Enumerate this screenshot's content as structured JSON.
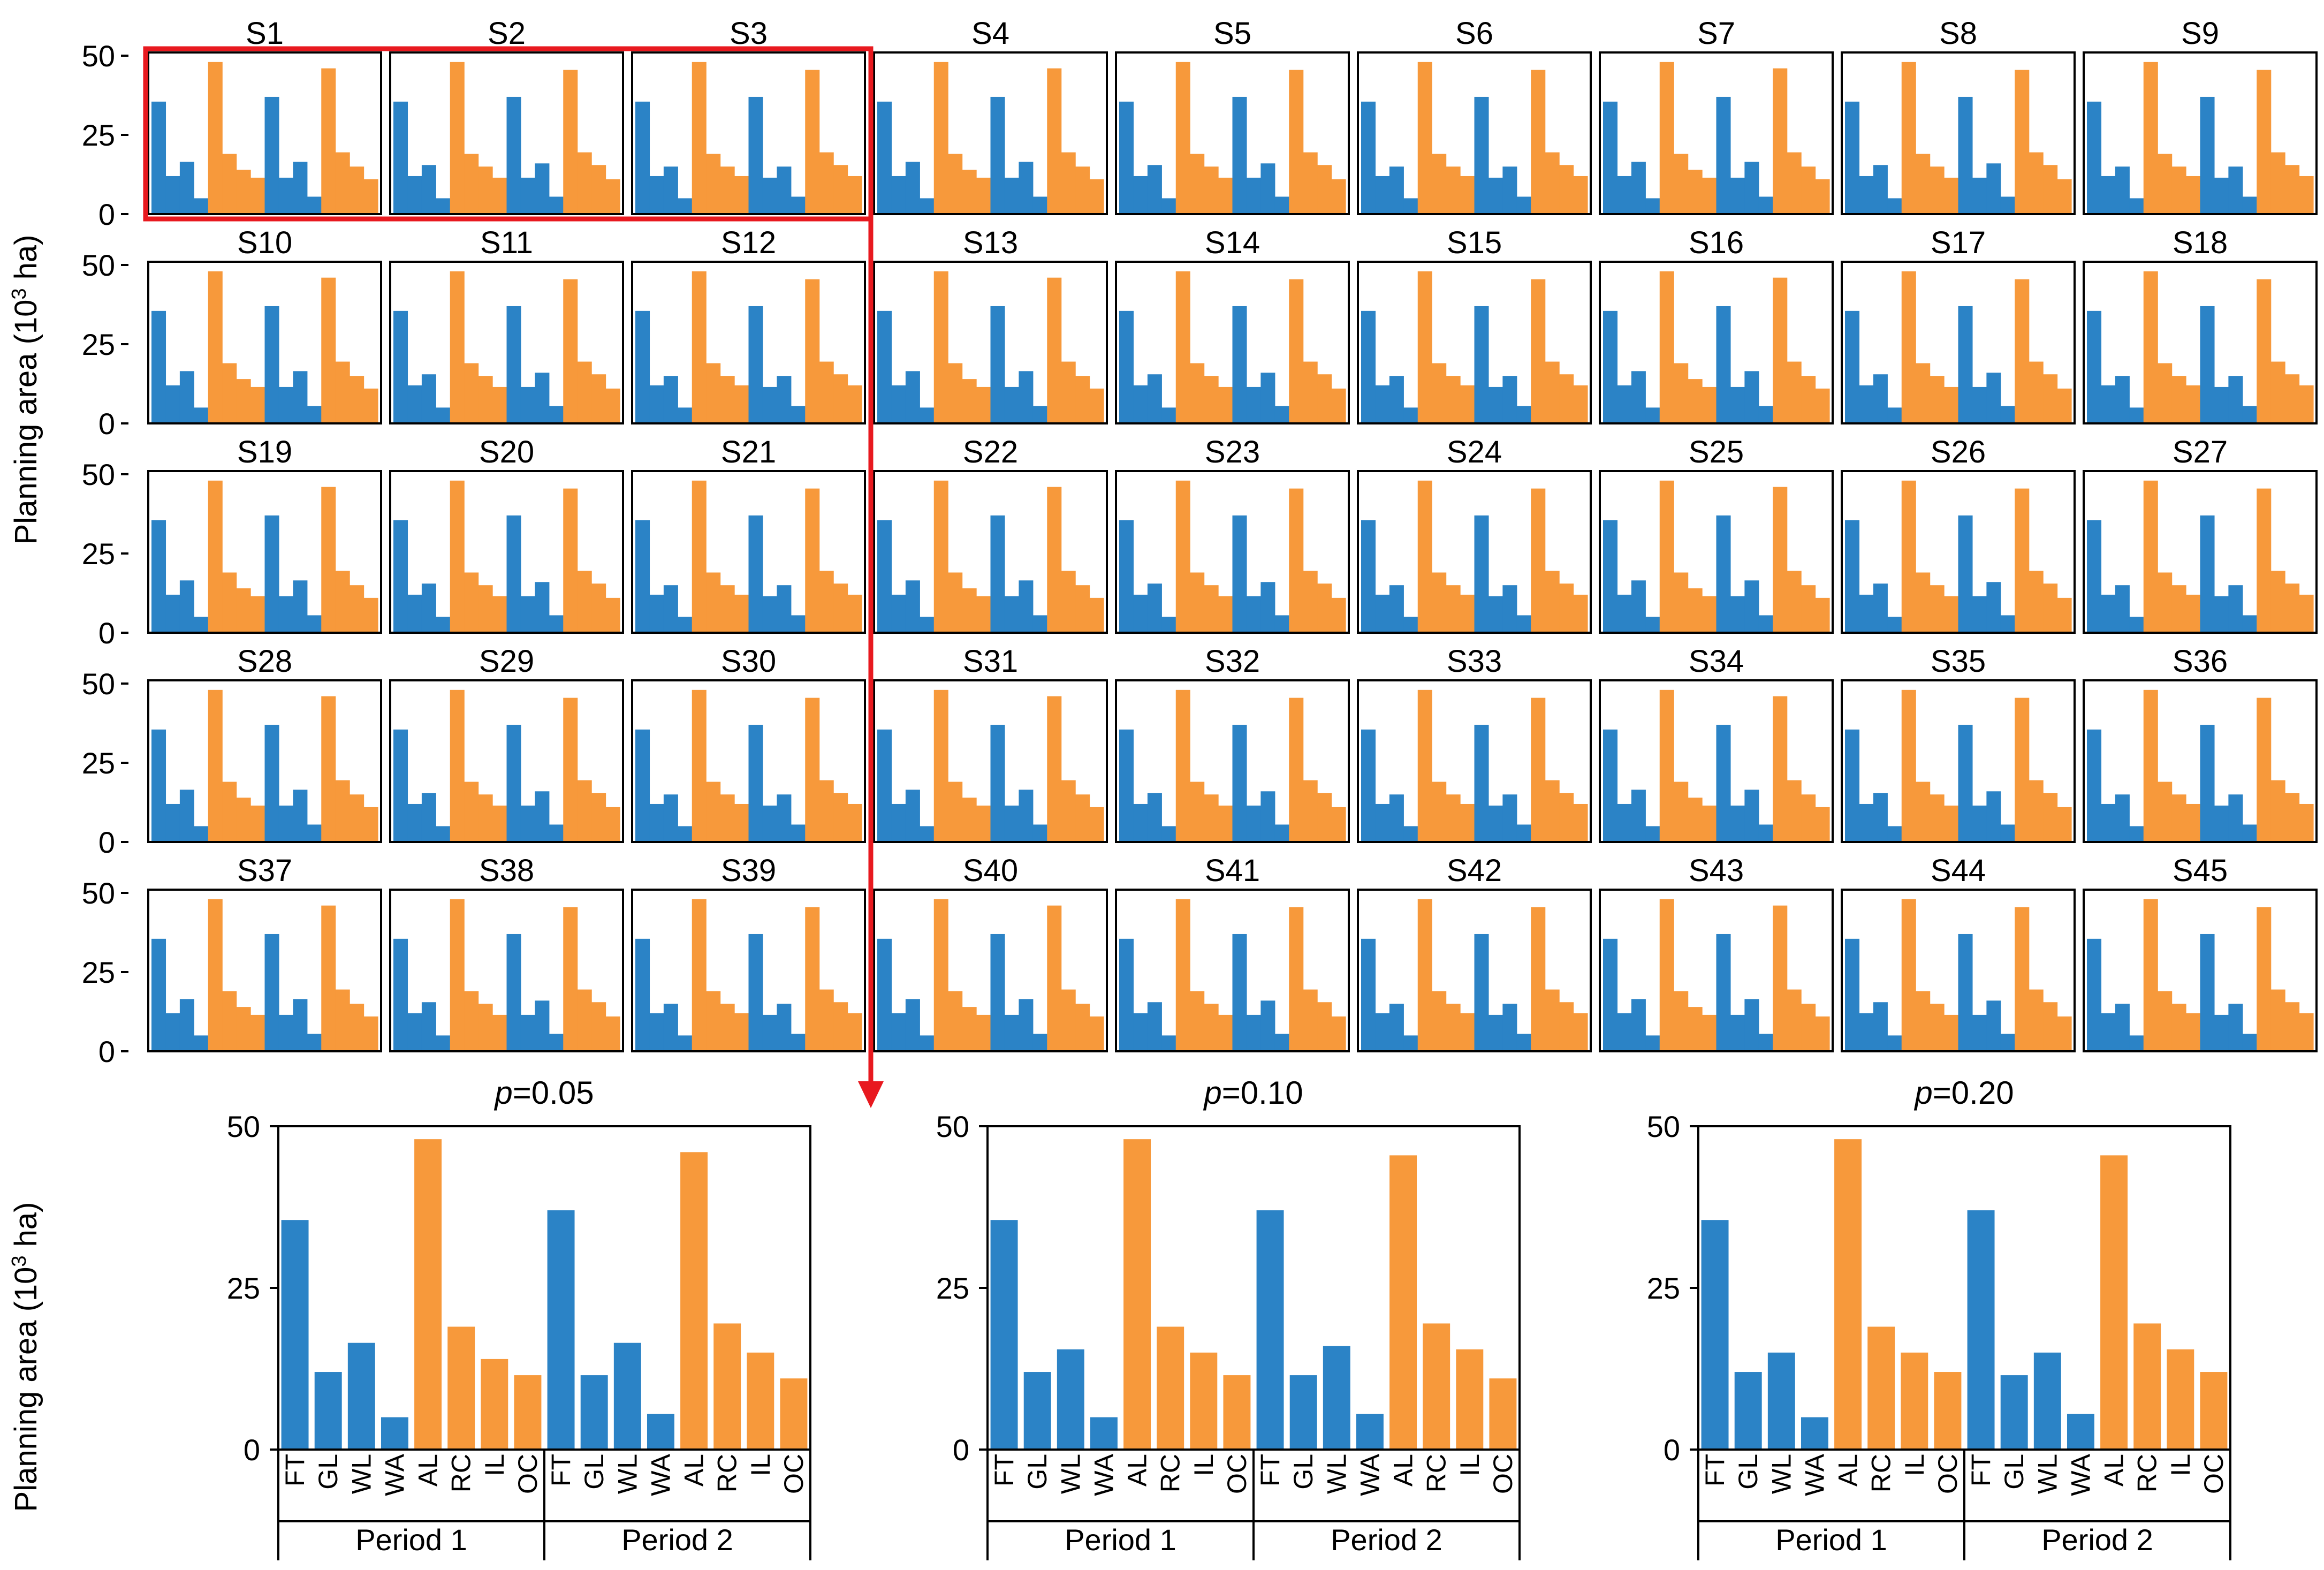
{
  "chart_data": {
    "type": "bar",
    "ylabel": "Planning area (10³ ha)",
    "ylabel_base": "Planning area (10",
    "ylabel_sup": "3",
    "ylabel_tail": " ha)",
    "ylim": [
      0,
      50
    ],
    "yticks": [
      0,
      25,
      50
    ],
    "categories": [
      "FT",
      "GL",
      "WL",
      "WA",
      "AL",
      "RC",
      "IL",
      "OC"
    ],
    "periods": [
      "Period 1",
      "Period 2"
    ],
    "colors": {
      "land_supply": "#2b83c6",
      "land_demand": "#f7993b",
      "highlight": "#e8191f"
    },
    "scenarios": [
      "S1",
      "S2",
      "S3",
      "S4",
      "S5",
      "S6",
      "S7",
      "S8",
      "S9",
      "S10",
      "S11",
      "S12",
      "S13",
      "S14",
      "S15",
      "S16",
      "S17",
      "S18",
      "S19",
      "S20",
      "S21",
      "S22",
      "S23",
      "S24",
      "S25",
      "S26",
      "S27",
      "S28",
      "S29",
      "S30",
      "S31",
      "S32",
      "S33",
      "S34",
      "S35",
      "S36",
      "S37",
      "S38",
      "S39",
      "S40",
      "S41",
      "S42",
      "S43",
      "S44",
      "S45"
    ],
    "scenario_values": {
      "A": [
        35.5,
        12,
        16.5,
        5,
        48,
        19,
        14,
        11.5,
        37,
        11.5,
        16.5,
        5.5,
        46,
        19.5,
        15,
        11
      ],
      "B": [
        35.5,
        12,
        15.5,
        5,
        48,
        19,
        15,
        11.5,
        37,
        11.5,
        16,
        5.5,
        45.5,
        19.5,
        15.5,
        11
      ],
      "C": [
        35.5,
        12,
        15,
        5,
        48,
        19,
        15,
        12,
        37,
        11.5,
        15,
        5.5,
        45.5,
        19.5,
        15.5,
        12
      ]
    },
    "scenario_pattern": [
      "A",
      "B",
      "C",
      "A",
      "B",
      "C",
      "A",
      "B",
      "C"
    ],
    "highlighted_scenarios": [
      "S1",
      "S2",
      "S3"
    ],
    "panels": [
      {
        "title_var": "p",
        "title_value": "=0.05",
        "values": [
          35.5,
          12,
          16.5,
          5,
          48,
          19,
          14,
          11.5,
          37,
          11.5,
          16.5,
          5.5,
          46,
          19.5,
          15,
          11
        ]
      },
      {
        "title_var": "p",
        "title_value": "=0.10",
        "values": [
          35.5,
          12,
          15.5,
          5,
          48,
          19,
          15,
          11.5,
          37,
          11.5,
          16,
          5.5,
          45.5,
          19.5,
          15.5,
          11
        ]
      },
      {
        "title_var": "p",
        "title_value": "=0.20",
        "values": [
          35.5,
          12,
          15,
          5,
          48,
          19,
          15,
          12,
          37,
          11.5,
          15,
          5.5,
          45.5,
          19.5,
          15.5,
          12
        ]
      }
    ]
  }
}
